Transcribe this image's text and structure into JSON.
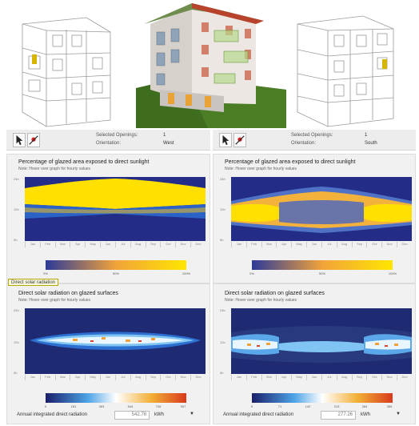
{
  "panels": {
    "left": {
      "selected_label": "Selected Openings:",
      "selected_value": "1",
      "orientation_label": "Orientation:",
      "orientation_value": "West",
      "pct_title": "Percentage of glazed area exposed to direct sunlight",
      "pct_note": "Note: Hover over graph for hourly values",
      "pct_scale": [
        "0%",
        "50%",
        "100%"
      ],
      "rad_title": "Direct solar radiation on glazed surfaces",
      "rad_note": "Note: Hover over graph for hourly values",
      "rad_scale": [
        "0",
        "181",
        "363",
        "544",
        "726",
        "907"
      ],
      "annual_label": "Annual integrated direct radiation",
      "annual_value": "542.78",
      "annual_unit": "kWh"
    },
    "right": {
      "selected_label": "Selected Openings:",
      "selected_value": "1",
      "orientation_label": "Orientation:",
      "orientation_value": "South",
      "pct_title": "Percentage of glazed area exposed to direct sunlight",
      "pct_note": "Note: Hover over graph for hourly values",
      "pct_scale": [
        "0%",
        "50%",
        "100%"
      ],
      "rad_title": "Direct solar radiation on glazed surfaces",
      "rad_note": "Note: Hover over graph for hourly values",
      "rad_scale": [
        "0",
        "71",
        "142",
        "213",
        "284",
        "355"
      ],
      "annual_label": "Annual integrated direct radiation",
      "annual_value": "277.26",
      "annual_unit": "kWh"
    }
  },
  "tooltip": "Direct solar radiation",
  "months": [
    "Jan",
    "Feb",
    "Mar",
    "Apr",
    "May",
    "Jun",
    "Jul",
    "Aug",
    "Sep",
    "Oct",
    "Nov",
    "Dec"
  ],
  "y_ticks": [
    "24h",
    "12h",
    "0h"
  ],
  "icons": {
    "select_tool": "cursor-icon",
    "sun_tool": "sun-tool-icon"
  },
  "colors": {
    "plot_bg": "#232c86",
    "sun_yellow": "#ffe000",
    "pct_scale": [
      "#2c3a9a",
      "#f2a33a",
      "#ffe600"
    ],
    "rad_scale": [
      "#1b1f6a",
      "#4da3e6",
      "#ffffff",
      "#f2b036",
      "#d83a1c"
    ]
  }
}
